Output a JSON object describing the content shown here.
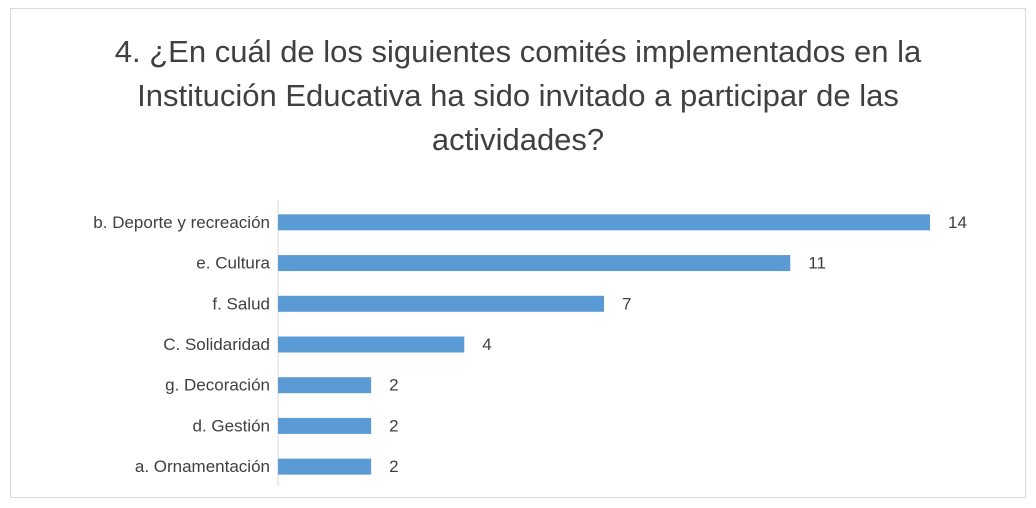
{
  "chart_data": {
    "type": "bar",
    "orientation": "horizontal",
    "title": "4. ¿En cuál de los siguientes comités implementados en la Institución Educativa ha sido invitado a participar de las actividades?",
    "categories": [
      "b. Deporte y recreación",
      "e. Cultura",
      "f. Salud",
      "C. Solidaridad",
      "g. Decoración",
      "d. Gestión",
      "a. Ornamentación"
    ],
    "values": [
      14,
      11,
      7,
      4,
      2,
      2,
      2
    ],
    "color": "#5b9bd5"
  }
}
